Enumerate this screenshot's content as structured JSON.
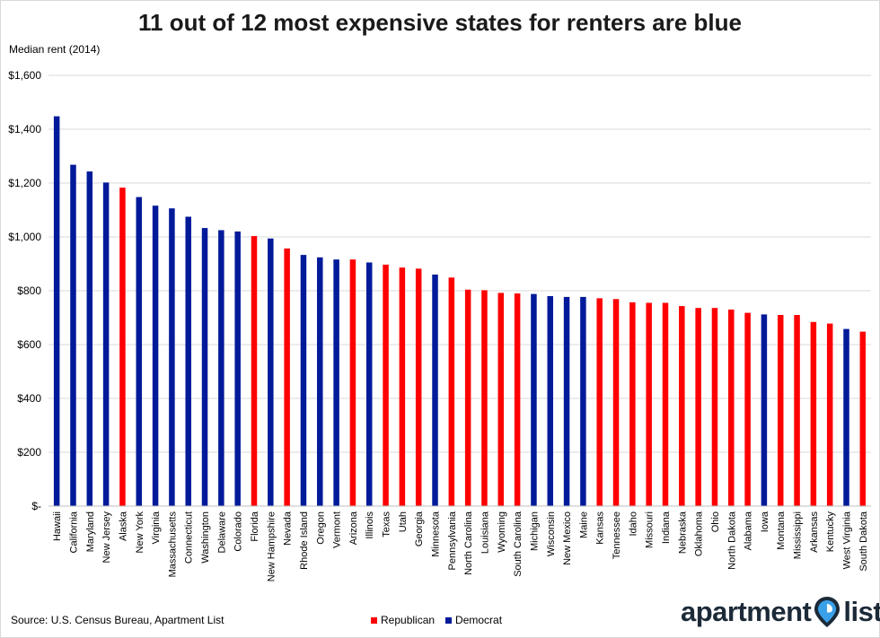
{
  "title": "11 out of 12 most expensive states for renters are blue",
  "source": "Source: U.S. Census Bureau, Apartment List",
  "logo": {
    "left": "apartment",
    "right": "list"
  },
  "colors": {
    "Republican": "#ff0000",
    "Democrat": "#001a99"
  },
  "legend": [
    "Republican",
    "Democrat"
  ],
  "chart_data": {
    "type": "bar",
    "title": "11 out of 12 most expensive states for renters are blue",
    "xlabel": "",
    "ylabel": "Median rent (2014)",
    "ylim": [
      0,
      1600
    ],
    "yticks": [
      0,
      200,
      400,
      600,
      800,
      1000,
      1200,
      1400,
      1600
    ],
    "ytick_labels": [
      "$-",
      "$200",
      "$400",
      "$600",
      "$800",
      "$1,000",
      "$1,200",
      "$1,400",
      "$1,600"
    ],
    "grid": true,
    "legend_position": "bottom-center",
    "categories": [
      "Hawaii",
      "California",
      "Maryland",
      "New Jersey",
      "Alaska",
      "New York",
      "Virginia",
      "Massachusetts",
      "Connecticut",
      "Washington",
      "Delaware",
      "Colorado",
      "Florida",
      "New Hampshire",
      "Nevada",
      "Rhode Island",
      "Oregon",
      "Vermont",
      "Arizona",
      "Illinois",
      "Texas",
      "Utah",
      "Georgia",
      "Minnesota",
      "Pennsylvania",
      "North Carolina",
      "Louisiana",
      "Wyoming",
      "South Carolina",
      "Michigan",
      "Wisconsin",
      "New Mexico",
      "Maine",
      "Kansas",
      "Tennessee",
      "Idaho",
      "Missouri",
      "Indiana",
      "Nebraska",
      "Oklahoma",
      "Ohio",
      "North Dakota",
      "Alabama",
      "Iowa",
      "Montana",
      "Mississippi",
      "Arkansas",
      "Kentucky",
      "West Virginia",
      "South Dakota"
    ],
    "values": [
      1448,
      1268,
      1243,
      1202,
      1183,
      1148,
      1116,
      1106,
      1075,
      1033,
      1025,
      1020,
      1003,
      994,
      957,
      933,
      924,
      916,
      916,
      905,
      897,
      886,
      882,
      860,
      849,
      804,
      802,
      792,
      790,
      788,
      780,
      777,
      777,
      772,
      769,
      757,
      755,
      755,
      743,
      736,
      736,
      730,
      718,
      712,
      710,
      710,
      684,
      678,
      658,
      648
    ],
    "party": [
      "Democrat",
      "Democrat",
      "Democrat",
      "Democrat",
      "Republican",
      "Democrat",
      "Democrat",
      "Democrat",
      "Democrat",
      "Democrat",
      "Democrat",
      "Democrat",
      "Republican",
      "Democrat",
      "Republican",
      "Democrat",
      "Democrat",
      "Democrat",
      "Republican",
      "Democrat",
      "Republican",
      "Republican",
      "Republican",
      "Democrat",
      "Republican",
      "Republican",
      "Republican",
      "Republican",
      "Republican",
      "Democrat",
      "Democrat",
      "Democrat",
      "Democrat",
      "Republican",
      "Republican",
      "Republican",
      "Republican",
      "Republican",
      "Republican",
      "Republican",
      "Republican",
      "Republican",
      "Republican",
      "Democrat",
      "Republican",
      "Republican",
      "Republican",
      "Republican",
      "Democrat",
      "Republican"
    ]
  }
}
